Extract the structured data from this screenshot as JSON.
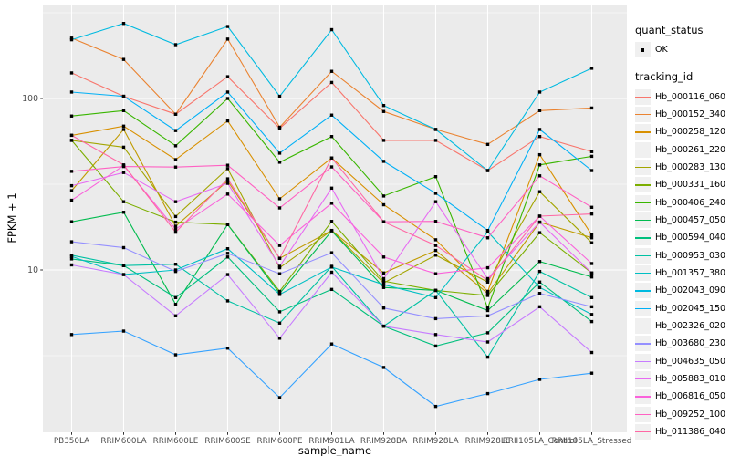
{
  "figure": {
    "panel_background": "#EBEBEB",
    "gridline_color": "#FFFFFF",
    "tick_mark_color": "#333333",
    "tick_label_color": "#4D4D4D",
    "axis_title_color": "#000000",
    "legend_key_background": "#F0F0F0",
    "point_color": "#000000"
  },
  "axes": {
    "x_title": "sample_name",
    "y_title": "FPKM + 1",
    "y_tick_labels": [
      "100",
      "10"
    ],
    "y_major_gridlines": [
      100,
      10
    ],
    "y_minor_gridlines": [
      316.23,
      31.62,
      3.162
    ]
  },
  "legend": {
    "quant_status_title": "quant_status",
    "quant_status_items": [
      {
        "label": "OK",
        "symbol": "black-point"
      }
    ],
    "tracking_id_title": "tracking_id"
  },
  "chart_data": {
    "type": "line",
    "xlabel": "sample_name",
    "ylabel": "FPKM + 1",
    "y_scale": "log10",
    "ylim": [
      1.13,
      350
    ],
    "grid": "major-and-minor",
    "legend_position": "right",
    "point_symbol": "small black square (quant_status OK)",
    "categories": [
      "PB350LA",
      "RRIM600LA",
      "RRIM600LE",
      "RRIM600SE",
      "RRIM600PE",
      "RRIM901LA",
      "RRIM928BA",
      "RRIM928LA",
      "RRIM928LE",
      "RRII105LA_Control",
      "RRII105LA_Stressed"
    ],
    "series": [
      {
        "name": "Hb_000116_060",
        "color": "#F8766D",
        "values": [
          141,
          103,
          81,
          134,
          67,
          124,
          57,
          57,
          38,
          60,
          49
        ]
      },
      {
        "name": "Hb_000152_340",
        "color": "#EA8331",
        "values": [
          225,
          169,
          81,
          222,
          68,
          144,
          84,
          66,
          54,
          85,
          88
        ]
      },
      {
        "name": "Hb_000258_120",
        "color": "#D89000",
        "values": [
          61,
          69,
          44,
          74,
          26,
          45,
          24,
          15,
          7.5,
          47,
          16
        ]
      },
      {
        "name": "Hb_000261_220",
        "color": "#C09B00",
        "values": [
          29,
          66,
          18,
          33,
          11.7,
          17,
          9.6,
          13,
          7.3,
          19,
          15.4
        ]
      },
      {
        "name": "Hb_000283_130",
        "color": "#A3A500",
        "values": [
          57,
          52,
          20.5,
          39,
          10.3,
          17,
          8.4,
          12.2,
          8.5,
          28.6,
          14.4
        ]
      },
      {
        "name": "Hb_000331_160",
        "color": "#7CAE00",
        "values": [
          57,
          25,
          19,
          18.4,
          7.5,
          19.2,
          8.6,
          7.6,
          7.1,
          16.5,
          9.6
        ]
      },
      {
        "name": "Hb_000406_240",
        "color": "#39B600",
        "values": [
          79,
          85,
          53,
          100,
          42.5,
          60,
          27,
          35,
          6.0,
          41,
          46
        ]
      },
      {
        "name": "Hb_000457_050",
        "color": "#00BB4E",
        "values": [
          19.1,
          21.7,
          6.3,
          18.4,
          7.3,
          16.9,
          7.9,
          7.6,
          5.8,
          11.2,
          9.1
        ]
      },
      {
        "name": "Hb_000594_040",
        "color": "#00BF7D",
        "values": [
          11.6,
          10.6,
          6.9,
          11.9,
          5.7,
          7.7,
          4.7,
          3.6,
          4.3,
          8.5,
          5.0
        ]
      },
      {
        "name": "Hb_000953_030",
        "color": "#00C1A3",
        "values": [
          12.2,
          10.6,
          10.8,
          6.6,
          4.9,
          10.5,
          4.7,
          7.6,
          3.1,
          9.8,
          6.9
        ]
      },
      {
        "name": "Hb_001357_380",
        "color": "#00BFC4",
        "values": [
          12.0,
          9.4,
          10.0,
          13.3,
          7.2,
          10.4,
          8.2,
          6.9,
          16.7,
          7.9,
          5.5
        ]
      },
      {
        "name": "Hb_002043_090",
        "color": "#00BAE0",
        "values": [
          220,
          274,
          206,
          263,
          103,
          252,
          91,
          66,
          38,
          109,
          150
        ]
      },
      {
        "name": "Hb_002045_150",
        "color": "#00B0F6",
        "values": [
          109,
          103,
          65,
          109,
          48,
          80,
          43,
          28,
          17,
          66,
          38
        ]
      },
      {
        "name": "Hb_002326_020",
        "color": "#35A2FF",
        "values": [
          4.2,
          4.4,
          3.2,
          3.5,
          1.8,
          3.7,
          2.7,
          1.6,
          1.9,
          2.3,
          2.5
        ]
      },
      {
        "name": "Hb_003680_230",
        "color": "#9590FF",
        "values": [
          14.6,
          13.5,
          9.8,
          12.5,
          9.5,
          12.6,
          6.0,
          5.2,
          5.4,
          7.3,
          6.1
        ]
      },
      {
        "name": "Hb_004635_050",
        "color": "#C77CFF",
        "values": [
          10.7,
          9.4,
          5.4,
          9.4,
          4.0,
          9.7,
          4.7,
          4.2,
          3.8,
          6.1,
          3.3
        ]
      },
      {
        "name": "Hb_005883_010",
        "color": "#E76BF3",
        "values": [
          31,
          37,
          25,
          32,
          10.5,
          30,
          8.9,
          25,
          8.9,
          19,
          9.6
        ]
      },
      {
        "name": "Hb_006816_050",
        "color": "#FA62DB",
        "values": [
          25.5,
          40.6,
          17.3,
          27.7,
          13.9,
          24.5,
          11.9,
          9.5,
          10.3,
          20.6,
          10.9
        ]
      },
      {
        "name": "Hb_009252_100",
        "color": "#FF61C3",
        "values": [
          37.6,
          40.1,
          39.8,
          40.8,
          23,
          39.9,
          19.1,
          19.2,
          15.4,
          35.4,
          23.2
        ]
      },
      {
        "name": "Hb_011386_040",
        "color": "#FF67A4",
        "values": [
          61,
          41,
          16.6,
          34,
          11.7,
          45,
          19.1,
          13.9,
          8.7,
          20.6,
          21.2
        ]
      }
    ]
  }
}
